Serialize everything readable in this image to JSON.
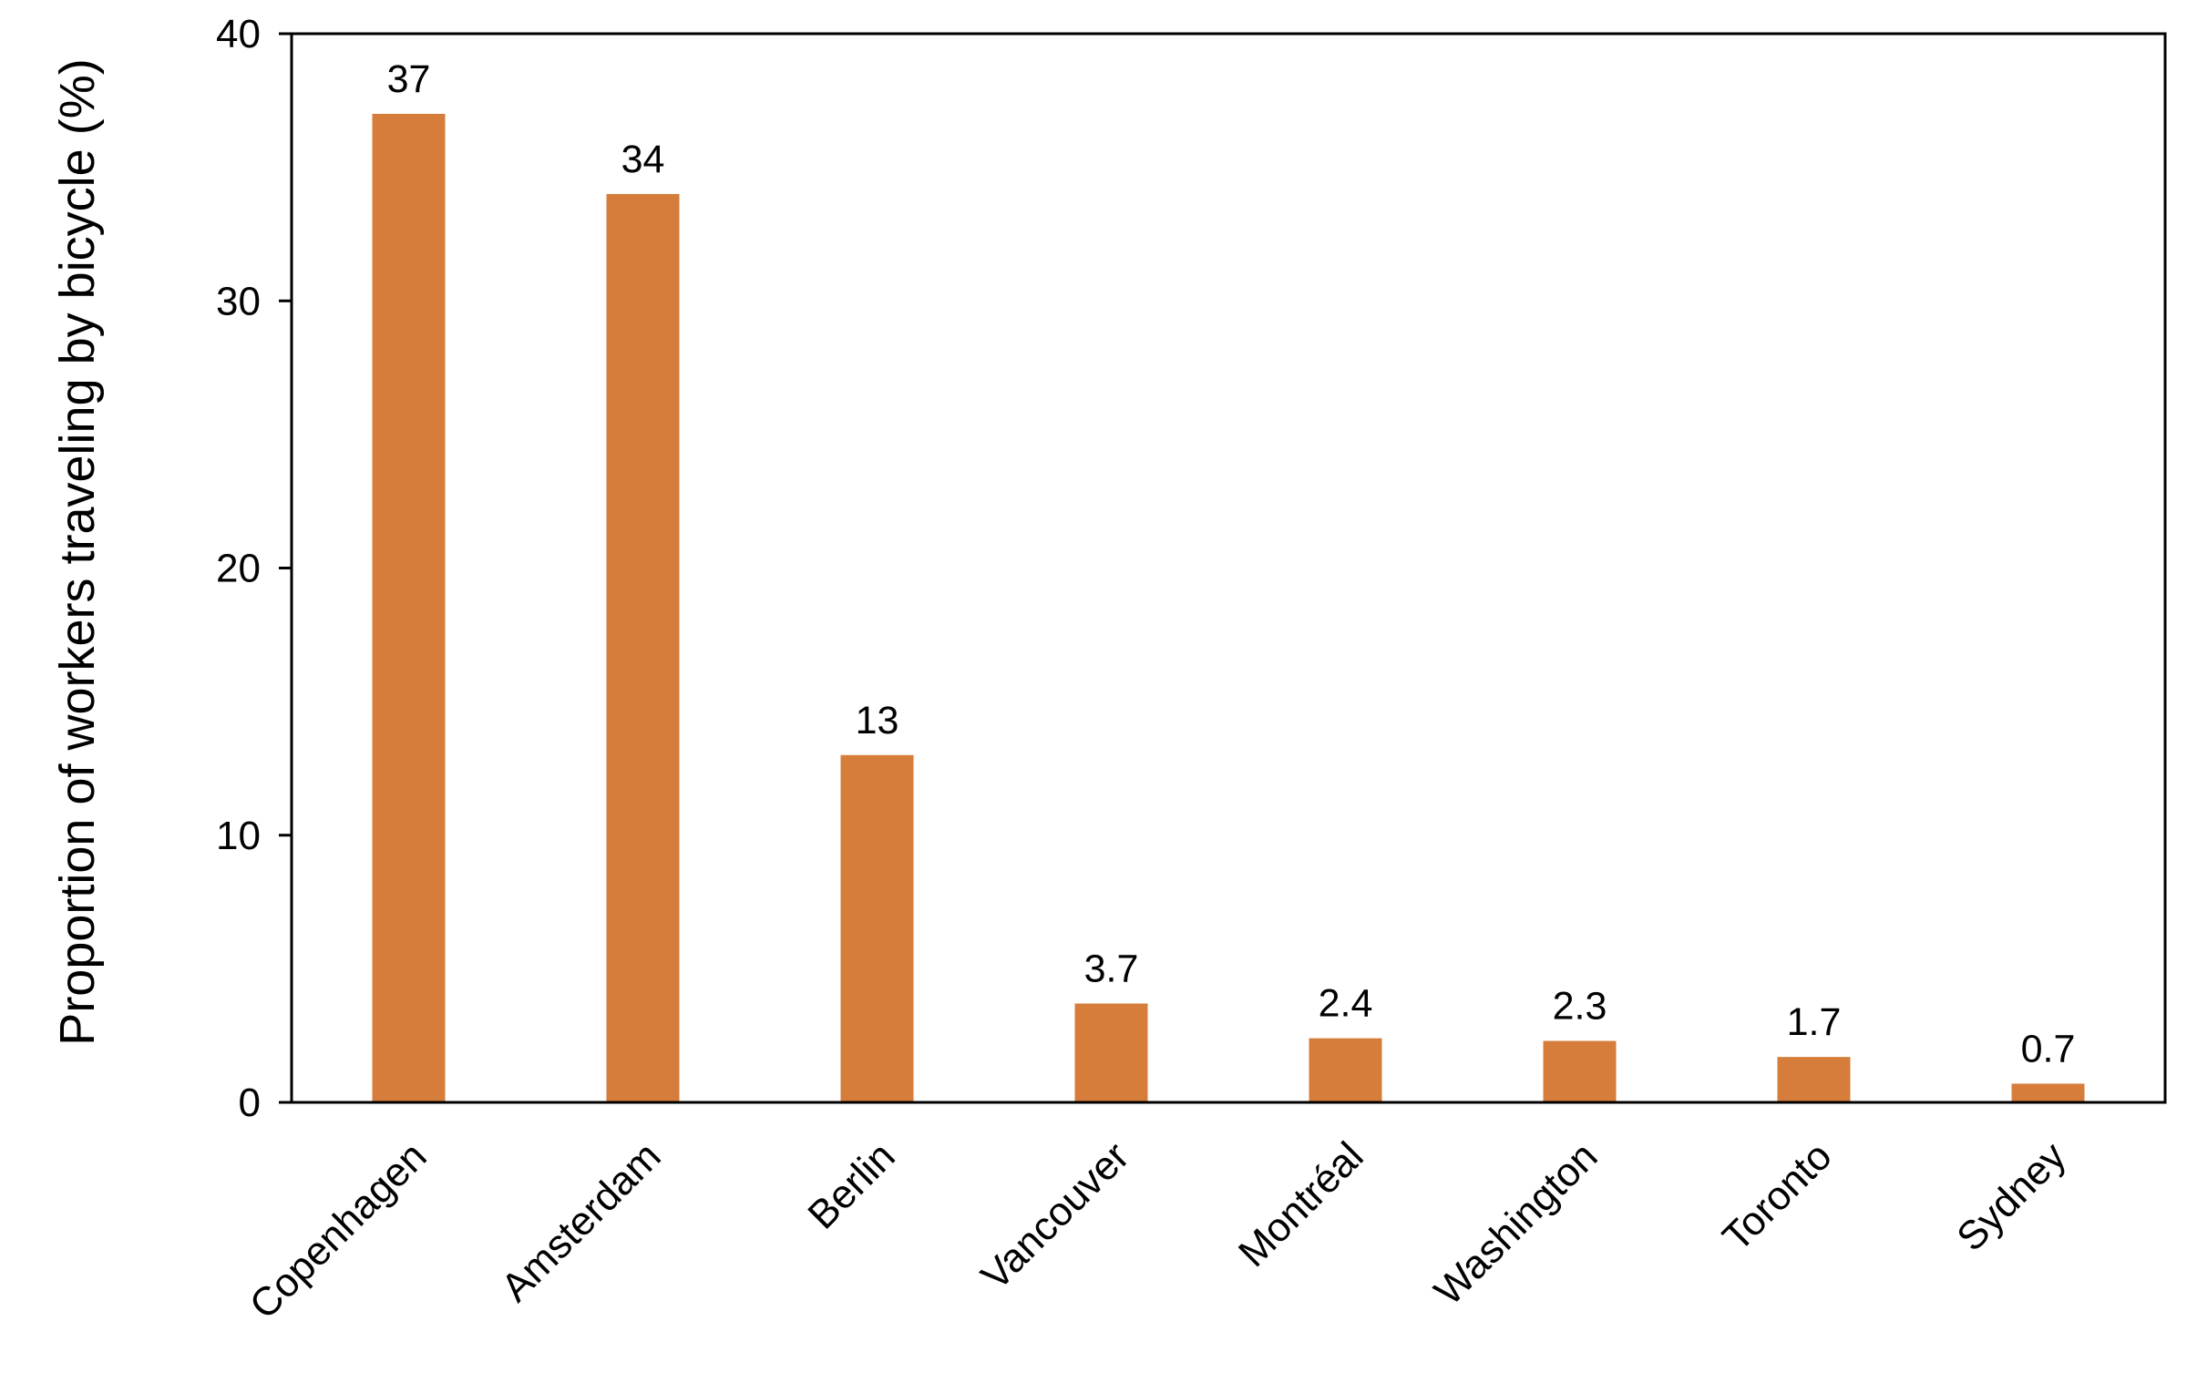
{
  "chart_data": {
    "type": "bar",
    "categories": [
      "Copenhagen",
      "Amsterdam",
      "Berlin",
      "Vancouver",
      "Montréal",
      "Washington",
      "Toronto",
      "Sydney"
    ],
    "values": [
      37,
      34,
      13,
      3.7,
      2.4,
      2.3,
      1.7,
      0.7
    ],
    "data_labels": [
      "37",
      "34",
      "13",
      "3.7",
      "2.4",
      "2.3",
      "1.7",
      "0.7"
    ],
    "title": "",
    "xlabel": "",
    "ylabel": "Proportion of workers traveling by bicycle (%)",
    "ylim": [
      0,
      40
    ],
    "yticks": [
      0,
      10,
      20,
      30,
      40
    ],
    "ytick_labels": [
      "0",
      "10",
      "20",
      "30",
      "40"
    ],
    "grid": false,
    "legend": "none",
    "bar_color": "#D67D3B"
  }
}
